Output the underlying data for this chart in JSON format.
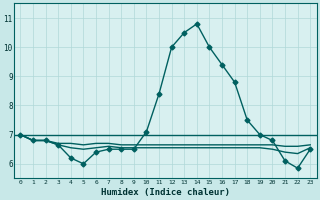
{
  "xlabel": "Humidex (Indice chaleur)",
  "ylabel": "",
  "xlim": [
    -0.5,
    23.5
  ],
  "ylim": [
    5.5,
    11.5
  ],
  "yticks": [
    6,
    7,
    8,
    9,
    10,
    11
  ],
  "xtick_labels": [
    "0",
    "1",
    "2",
    "3",
    "4",
    "5",
    "6",
    "7",
    "8",
    "9",
    "10",
    "11",
    "12",
    "13",
    "14",
    "15",
    "16",
    "17",
    "18",
    "19",
    "20",
    "21",
    "22",
    "23"
  ],
  "bg_color": "#c8e8e8",
  "plot_bg_color": "#d8f0f0",
  "grid_color": "#b0d8d8",
  "line_color": "#006060",
  "series_main": [
    7.0,
    6.8,
    6.8,
    6.65,
    6.2,
    6.0,
    6.4,
    6.5,
    6.5,
    6.5,
    7.1,
    8.4,
    10.0,
    10.5,
    10.8,
    10.0,
    9.4,
    8.8,
    7.5,
    7.0,
    6.8,
    6.1,
    5.85,
    6.5
  ],
  "series_flat1": [
    7.0,
    6.8,
    6.8,
    6.7,
    6.7,
    6.65,
    6.7,
    6.7,
    6.65,
    6.65,
    6.65,
    6.65,
    6.65,
    6.65,
    6.65,
    6.65,
    6.65,
    6.65,
    6.65,
    6.65,
    6.65,
    6.6,
    6.6,
    6.65
  ],
  "series_flat2": [
    7.0,
    6.8,
    6.8,
    6.65,
    6.55,
    6.5,
    6.55,
    6.6,
    6.55,
    6.55,
    6.55,
    6.55,
    6.55,
    6.55,
    6.55,
    6.55,
    6.55,
    6.55,
    6.55,
    6.55,
    6.5,
    6.4,
    6.35,
    6.55
  ],
  "hline_y": 7.0,
  "marker": "D",
  "markersize": 2.5,
  "linewidth": 1.0
}
